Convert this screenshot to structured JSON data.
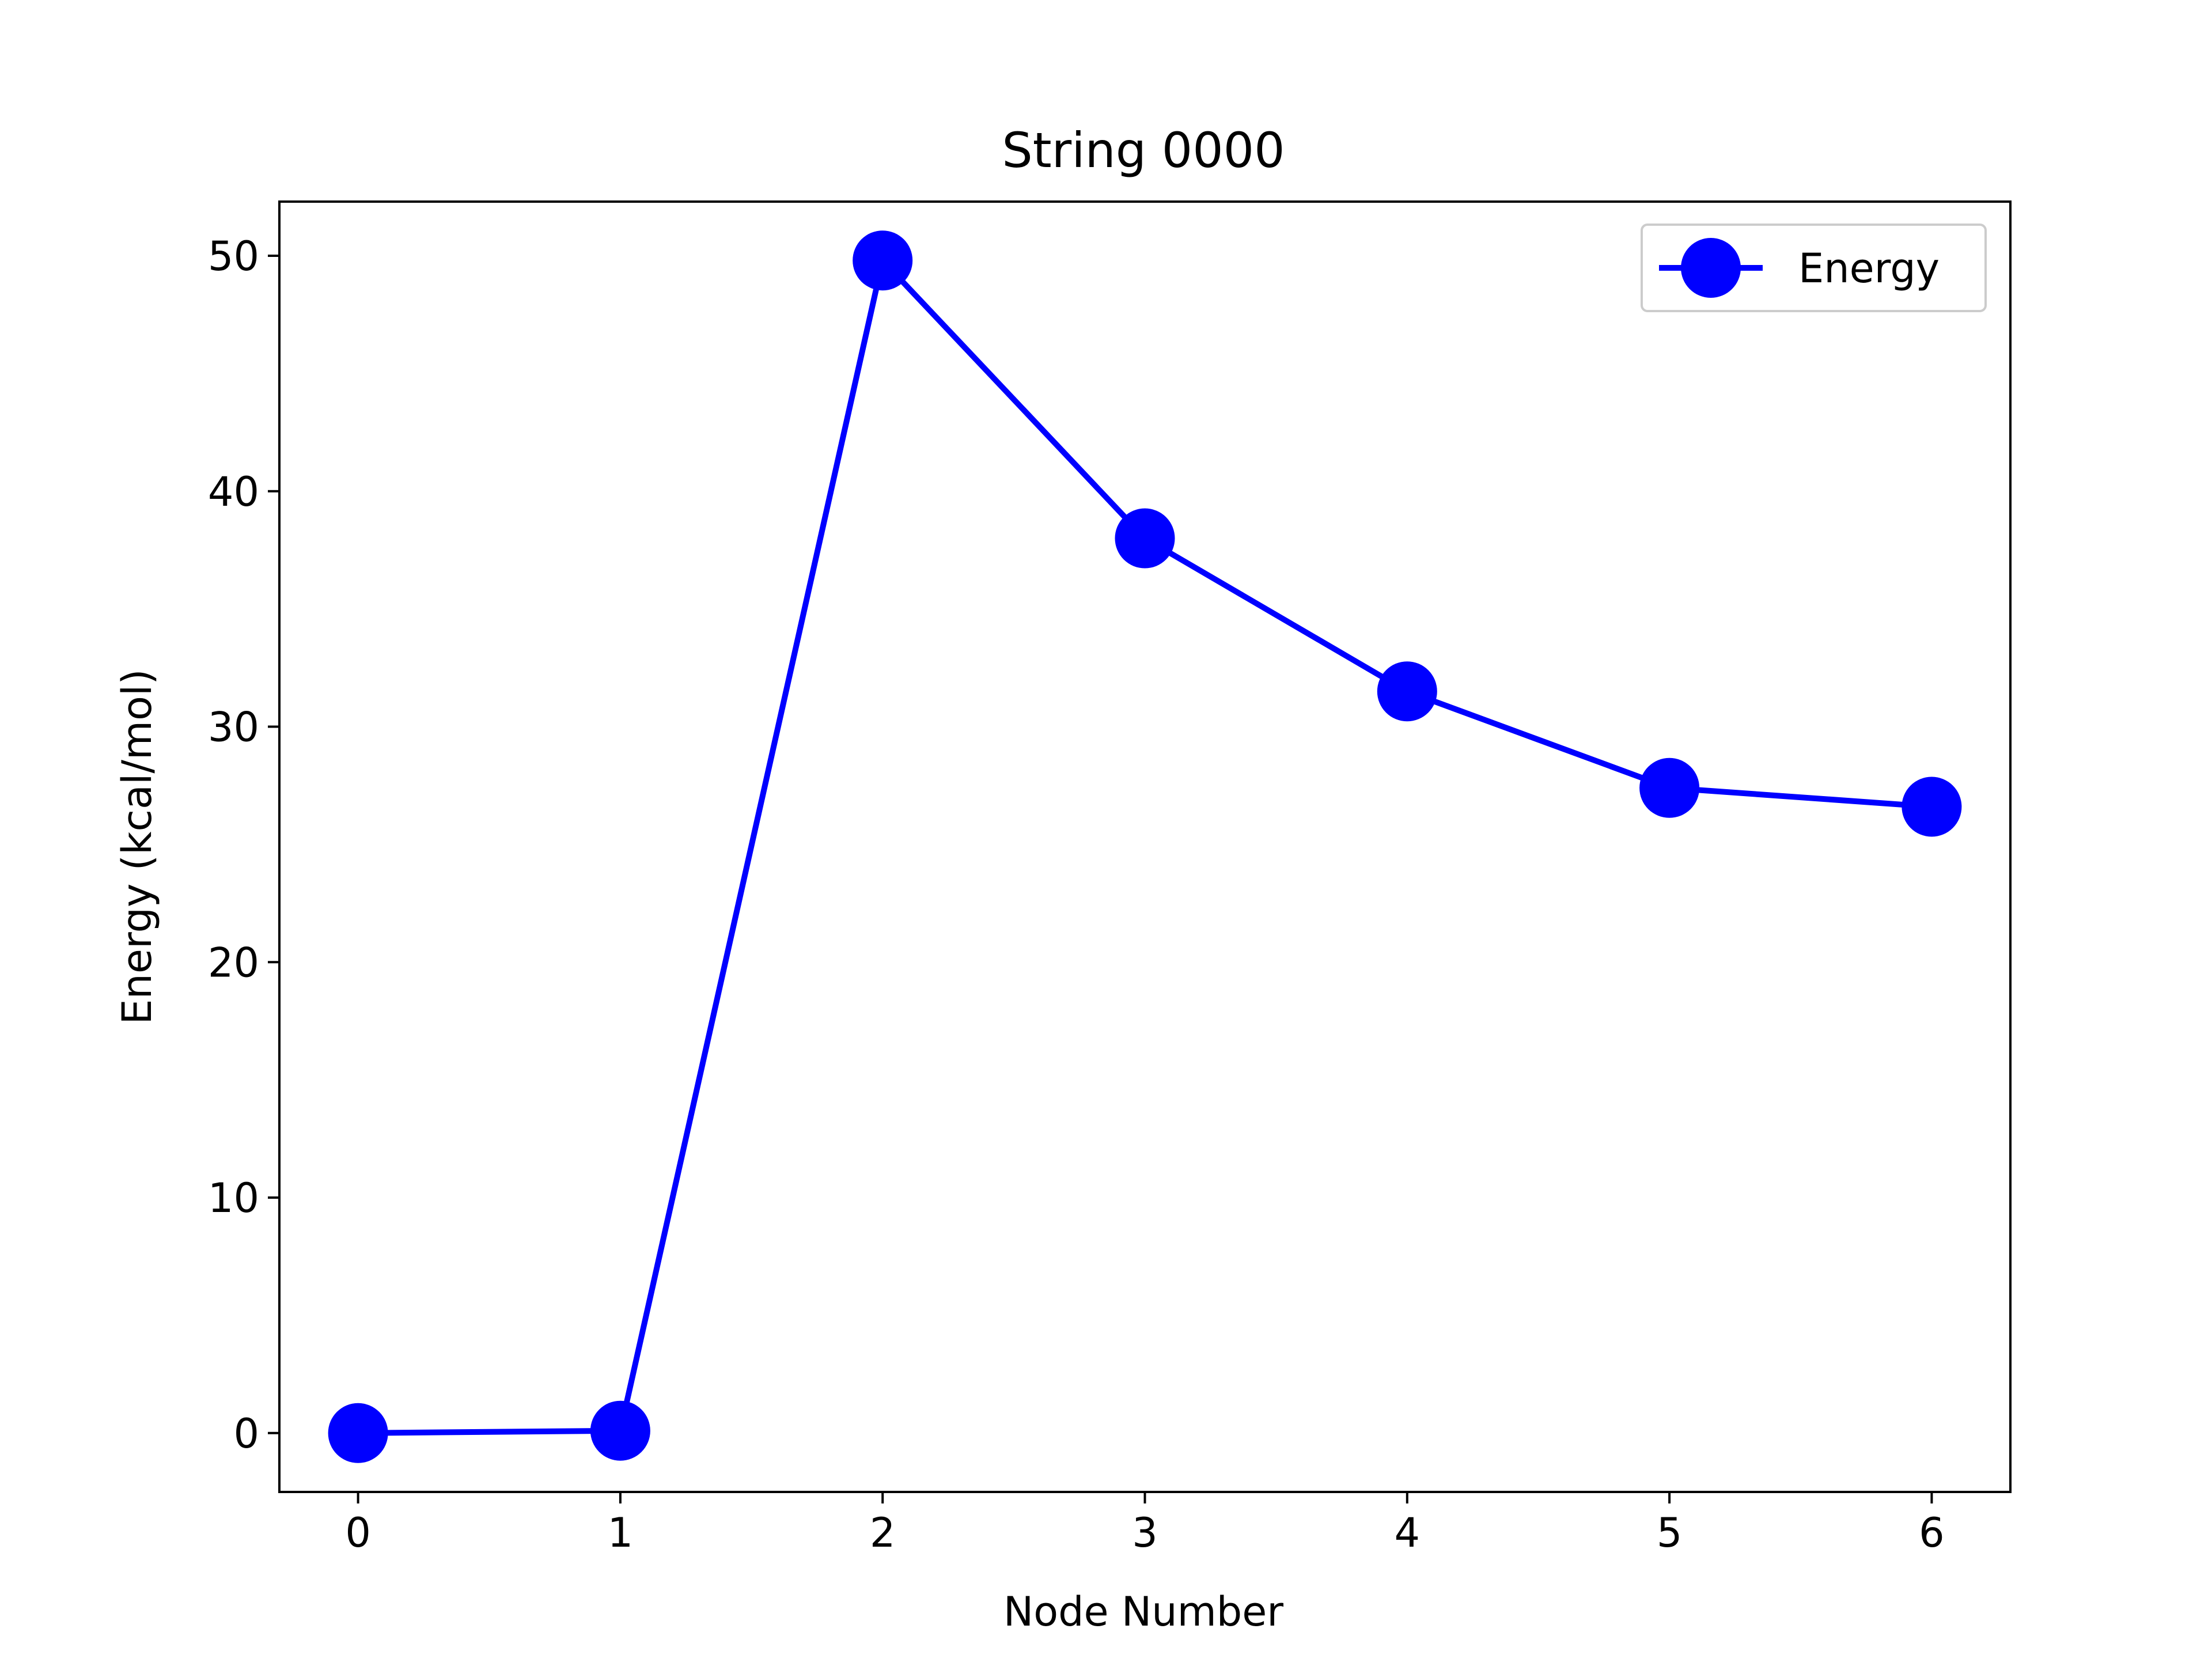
{
  "chart_data": {
    "type": "line",
    "title": "String 0000",
    "xlabel": "Node Number",
    "ylabel": "Energy (kcal/mol)",
    "x": [
      0,
      1,
      2,
      3,
      4,
      5,
      6
    ],
    "series": [
      {
        "name": "Energy",
        "values": [
          0.0,
          0.1,
          49.8,
          38.0,
          31.5,
          27.4,
          26.6
        ],
        "color": "#0000ff"
      }
    ],
    "xlim": [
      -0.3,
      6.3
    ],
    "ylim": [
      -2.5,
      52.3
    ],
    "xticks": [
      0,
      1,
      2,
      3,
      4,
      5,
      6
    ],
    "yticks": [
      0,
      10,
      20,
      30,
      40,
      50
    ],
    "xtick_labels": [
      "0",
      "1",
      "2",
      "3",
      "4",
      "5",
      "6"
    ],
    "ytick_labels": [
      "0",
      "10",
      "20",
      "30",
      "40",
      "50"
    ],
    "grid": false,
    "legend": "top-right"
  }
}
